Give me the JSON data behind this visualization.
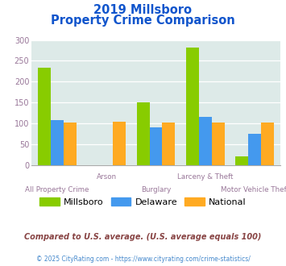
{
  "title_line1": "2019 Millsboro",
  "title_line2": "Property Crime Comparison",
  "categories": [
    "All Property Crime",
    "Arson",
    "Burglary",
    "Larceny & Theft",
    "Motor Vehicle Theft"
  ],
  "millsboro": [
    233,
    0,
    151,
    281,
    21
  ],
  "delaware": [
    108,
    0,
    91,
    116,
    75
  ],
  "national": [
    102,
    103,
    102,
    102,
    102
  ],
  "color_millsboro": "#88cc00",
  "color_delaware": "#4499ee",
  "color_national": "#ffaa22",
  "ylim": [
    0,
    300
  ],
  "yticks": [
    0,
    50,
    100,
    150,
    200,
    250,
    300
  ],
  "bg_color": "#ddeae8",
  "legend_labels": [
    "Millsboro",
    "Delaware",
    "National"
  ],
  "footnote1": "Compared to U.S. average. (U.S. average equals 100)",
  "footnote2": "© 2025 CityRating.com - https://www.cityrating.com/crime-statistics/",
  "title_color": "#1155cc",
  "footnote1_color": "#884444",
  "footnote2_color": "#4488cc",
  "xlabel_color": "#997799",
  "ytick_color": "#997799"
}
